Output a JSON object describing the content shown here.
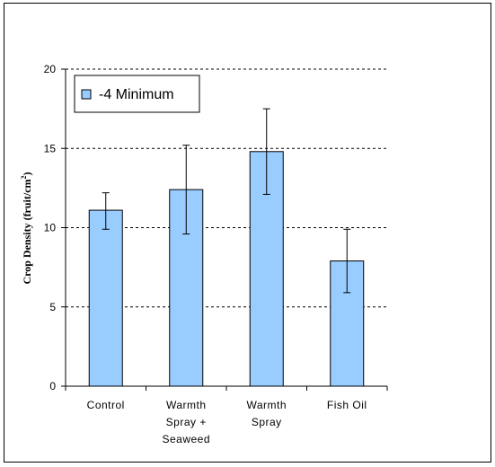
{
  "chart_data": {
    "type": "bar",
    "categories": [
      [
        "Control"
      ],
      [
        "Warmth",
        "Spray +",
        "Seaweed"
      ],
      [
        "Warmth",
        "Spray"
      ],
      [
        "Fish Oil"
      ]
    ],
    "series": [
      {
        "name": "-4 Minimum",
        "values": [
          11.1,
          12.4,
          14.8,
          7.9
        ],
        "error_low": [
          9.9,
          9.6,
          12.1,
          5.9
        ],
        "error_high": [
          12.2,
          15.2,
          17.5,
          9.9
        ],
        "color": "#99ccff"
      }
    ],
    "ylabel": "Crop Density (fruit/cm",
    "ylabel_sup": "2",
    "ylabel_close": ")",
    "ylim": [
      0,
      20
    ],
    "yticks": [
      "0",
      "5",
      "10",
      "15",
      "20"
    ],
    "grid": true,
    "legend_position": "top-left"
  }
}
